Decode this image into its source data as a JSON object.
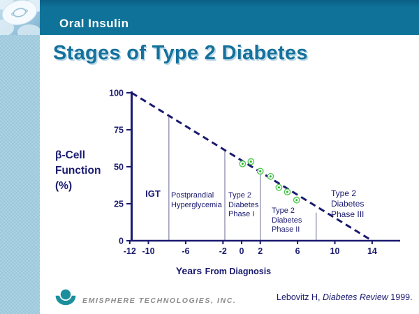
{
  "slide": {
    "banner_title": "Oral Insulin",
    "title": "Stages of Type 2 Diabetes",
    "footer": {
      "logo_text": "EMISPHERE TECHNOLOGIES, INC.",
      "citation_prefix": "Lebovitz H, ",
      "citation_italic": "Diabetes Review",
      "citation_suffix": " 1999."
    }
  },
  "colors": {
    "banner_teal": "#0f7399",
    "title_teal": "#15719b",
    "chart_navy": "#1a1a70",
    "separator": "#6a6a94",
    "marker_green": "#4ecb4e",
    "marker_core_green": "#2db82d",
    "logo_teal": "#1b8f9e",
    "strip_blue": "#a5cede"
  },
  "chart_data": {
    "type": "scatter",
    "title": "",
    "ylabel": "β-Cell\nFunction\n(%)",
    "xlabel_primary": "Years",
    "xlabel_secondary": "From Diagnosis",
    "xlim": [
      -12,
      17
    ],
    "ylim": [
      0,
      100
    ],
    "grid": false,
    "y_ticks": [
      0,
      25,
      50,
      75,
      100
    ],
    "x_ticks": [
      -12,
      -10,
      -6,
      -2,
      0,
      2,
      6,
      10,
      14
    ],
    "trend_line": {
      "style": "dashed",
      "from": {
        "x": -11.8,
        "y": 100
      },
      "to": {
        "x": 14,
        "y": 0
      }
    },
    "points": [
      {
        "x": 0.1,
        "y": 52
      },
      {
        "x": 1.0,
        "y": 53.5
      },
      {
        "x": 2.0,
        "y": 47
      },
      {
        "x": 3.1,
        "y": 43.5
      },
      {
        "x": 4.0,
        "y": 36
      },
      {
        "x": 4.9,
        "y": 33
      },
      {
        "x": 5.9,
        "y": 27.5
      }
    ],
    "separators": [
      {
        "x": -7.8,
        "y_top": 84
      },
      {
        "x": -1.8,
        "y_top": 61
      },
      {
        "x": 2.0,
        "y_top": 45
      },
      {
        "x": 8.0,
        "y_top": 19
      }
    ],
    "stages": [
      {
        "label": "IGT"
      },
      {
        "label": "Postprandial\nHyperglycemia"
      },
      {
        "label": "Type 2\nDiabetes\nPhase I"
      },
      {
        "label": "Type 2\nDiabetes\nPhase II"
      },
      {
        "label": "Type 2\nDiabetes\nPhase III"
      }
    ]
  }
}
